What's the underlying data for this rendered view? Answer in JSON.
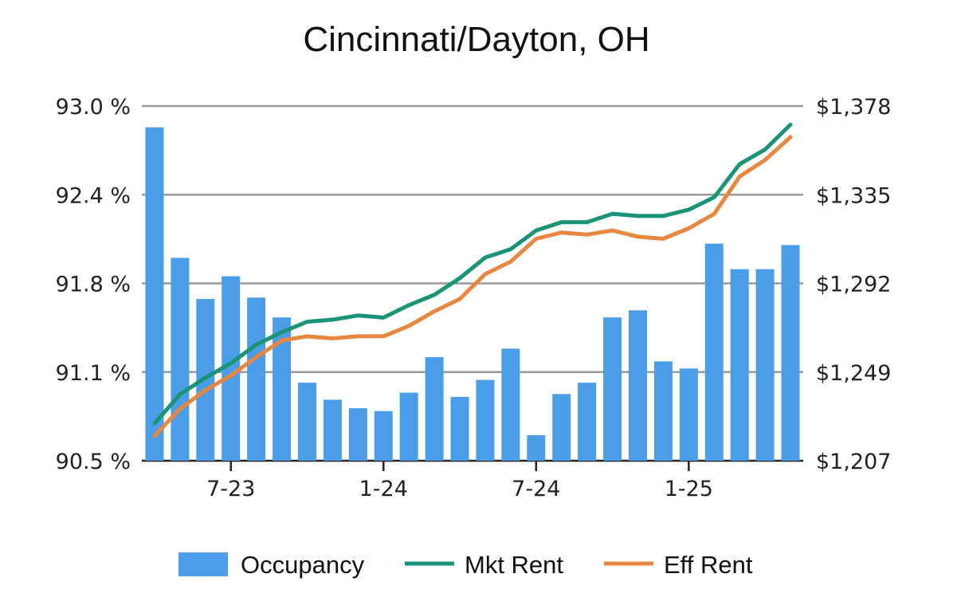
{
  "chart_data": {
    "type": "bar",
    "title": "Cincinnati/Dayton, OH",
    "xlabel": "",
    "ylabel": "",
    "x_tick_labels": [
      "7-23",
      "1-24",
      "7-24",
      "1-25"
    ],
    "x_tick_index": [
      3,
      9,
      15,
      21
    ],
    "left_axis": {
      "ticks": [
        "93.0 %",
        "92.4 %",
        "91.8 %",
        "91.1 %",
        "90.5 %"
      ],
      "ylim": [
        90.5,
        93.0
      ]
    },
    "right_axis": {
      "ticks": [
        "$1,378",
        "$1,335",
        "$1,292",
        "$1,249",
        "$1,207"
      ],
      "ylim": [
        1207,
        1378
      ]
    },
    "grid": true,
    "legend_position": "bottom",
    "series": [
      {
        "name": "Occupancy",
        "type": "bar",
        "axis": "left",
        "color": "#4a9de6",
        "values": [
          92.85,
          91.93,
          91.64,
          91.8,
          91.65,
          91.51,
          91.05,
          90.93,
          90.87,
          90.85,
          90.98,
          91.23,
          90.95,
          91.07,
          91.29,
          90.68,
          90.97,
          91.05,
          91.51,
          91.56,
          91.2,
          91.15,
          92.03,
          91.85,
          91.85,
          92.02
        ]
      },
      {
        "name": "Mkt Rent",
        "type": "line",
        "axis": "right",
        "color": "#1a9477",
        "values": [
          1225,
          1239,
          1247,
          1254,
          1263,
          1269,
          1274,
          1275,
          1277,
          1276,
          1282,
          1287,
          1295,
          1305,
          1309,
          1318,
          1322,
          1322,
          1326,
          1325,
          1325,
          1328,
          1334,
          1350,
          1357,
          1369
        ]
      },
      {
        "name": "Eff Rent",
        "type": "line",
        "axis": "right",
        "color": "#e8873f",
        "values": [
          1219,
          1232,
          1241,
          1248,
          1257,
          1265,
          1267,
          1266,
          1267,
          1267,
          1272,
          1279,
          1285,
          1297,
          1303,
          1314,
          1317,
          1316,
          1318,
          1315,
          1314,
          1319,
          1326,
          1344,
          1352,
          1363
        ]
      }
    ]
  }
}
